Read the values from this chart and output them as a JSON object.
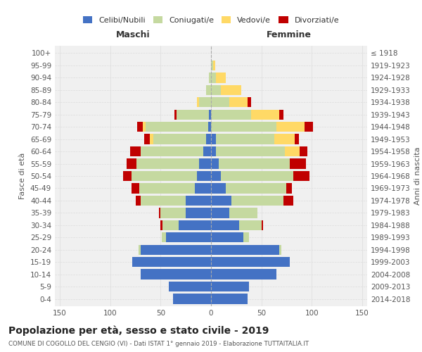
{
  "age_groups": [
    "100+",
    "95-99",
    "90-94",
    "85-89",
    "80-84",
    "75-79",
    "70-74",
    "65-69",
    "60-64",
    "55-59",
    "50-54",
    "45-49",
    "40-44",
    "35-39",
    "30-34",
    "25-29",
    "20-24",
    "15-19",
    "10-14",
    "5-9",
    "0-4"
  ],
  "birth_years": [
    "≤ 1918",
    "1919-1923",
    "1924-1928",
    "1929-1933",
    "1934-1938",
    "1939-1943",
    "1944-1948",
    "1949-1953",
    "1954-1958",
    "1959-1963",
    "1964-1968",
    "1969-1973",
    "1974-1978",
    "1979-1983",
    "1984-1988",
    "1989-1993",
    "1994-1998",
    "1999-2003",
    "2004-2008",
    "2009-2013",
    "2014-2018"
  ],
  "male": {
    "celibi": [
      0,
      0,
      0,
      0,
      0,
      2,
      3,
      5,
      8,
      12,
      14,
      16,
      25,
      25,
      32,
      45,
      70,
      78,
      70,
      42,
      38
    ],
    "coniugati": [
      0,
      0,
      2,
      5,
      12,
      32,
      62,
      52,
      62,
      62,
      65,
      55,
      45,
      25,
      16,
      4,
      2,
      0,
      0,
      0,
      0
    ],
    "vedovi": [
      0,
      0,
      0,
      0,
      2,
      0,
      3,
      4,
      0,
      0,
      0,
      0,
      0,
      0,
      0,
      0,
      0,
      0,
      0,
      0,
      0
    ],
    "divorziati": [
      0,
      0,
      0,
      0,
      0,
      2,
      5,
      5,
      10,
      10,
      8,
      8,
      5,
      2,
      2,
      0,
      0,
      0,
      0,
      0,
      0
    ]
  },
  "female": {
    "nubili": [
      0,
      0,
      0,
      0,
      0,
      0,
      0,
      5,
      5,
      8,
      10,
      15,
      20,
      18,
      28,
      32,
      68,
      78,
      65,
      38,
      36
    ],
    "coniugate": [
      0,
      2,
      5,
      10,
      18,
      40,
      65,
      58,
      68,
      70,
      72,
      60,
      52,
      28,
      22,
      6,
      2,
      0,
      0,
      0,
      0
    ],
    "vedove": [
      0,
      2,
      10,
      20,
      18,
      28,
      28,
      20,
      15,
      0,
      0,
      0,
      0,
      0,
      0,
      0,
      0,
      0,
      0,
      0,
      0
    ],
    "divorziate": [
      0,
      0,
      0,
      0,
      4,
      4,
      8,
      4,
      8,
      16,
      16,
      5,
      10,
      0,
      2,
      0,
      0,
      0,
      0,
      0,
      0
    ]
  },
  "colors": {
    "celibi": "#4472c4",
    "coniugati": "#c5d9a0",
    "vedovi": "#ffd966",
    "divorziati": "#c00000"
  },
  "title": "Popolazione per età, sesso e stato civile - 2019",
  "subtitle": "COMUNE DI COGOLLO DEL CENGIO (VI) - Dati ISTAT 1° gennaio 2019 - Elaborazione TUTTAITALIA.IT",
  "xlabel_left": "Maschi",
  "xlabel_right": "Femmine",
  "ylabel_left": "Fasce di età",
  "ylabel_right": "Anni di nascita",
  "xlim": 155,
  "legend_labels": [
    "Celibi/Nubili",
    "Coniugati/e",
    "Vedovi/e",
    "Divorziati/e"
  ],
  "bg_color": "#ffffff",
  "grid_color": "#cccccc"
}
